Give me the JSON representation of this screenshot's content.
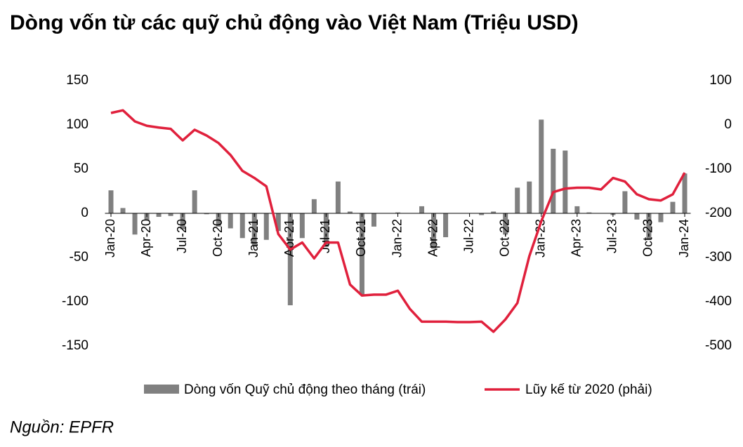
{
  "chart_data": {
    "type": "bar",
    "title": "Dòng vốn từ các quỹ chủ động vào Việt Nam (Triệu USD)",
    "source": "Nguồn: EPFR",
    "categories": [
      "Jan-20",
      null,
      null,
      "Apr-20",
      null,
      null,
      "Jul-20",
      null,
      null,
      "Oct-20",
      null,
      null,
      "Jan-21",
      null,
      null,
      "Apr-21",
      null,
      null,
      "Jul-21",
      null,
      null,
      "Oct-21",
      null,
      null,
      "Jan-22",
      null,
      null,
      "Apr-22",
      null,
      null,
      "Jul-22",
      null,
      null,
      "Oct-22",
      null,
      null,
      "Jan-23",
      null,
      null,
      "Apr-23",
      null,
      null,
      "Jul-23",
      null,
      null,
      "Oct-23",
      null,
      null,
      "Jan-24"
    ],
    "series": [
      {
        "name": "Dòng vốn Quỹ chủ động theo tháng (trái)",
        "type": "bar",
        "color": "#808080",
        "values": [
          26,
          6,
          -24,
          -8,
          -4,
          -3,
          -18,
          26,
          -1,
          -15,
          -17,
          -28,
          -36,
          -30,
          -20,
          -104,
          -28,
          16,
          -38,
          36,
          2,
          -92,
          -15,
          0,
          1,
          0,
          8,
          -40,
          -27,
          0,
          0,
          -2,
          2,
          -24,
          29,
          36,
          106,
          73,
          71,
          8,
          1,
          0,
          -2,
          25,
          -7,
          -30,
          -10,
          13,
          45
        ]
      },
      {
        "name": "Lũy kế từ 2020 (phải)",
        "type": "line",
        "axis": "y2",
        "color": "#e0203c",
        "values": [
          27,
          33,
          8,
          -2,
          -6,
          -9,
          -35,
          -11,
          -24,
          -41,
          -68,
          -104,
          -120,
          -139,
          -247,
          -282,
          -266,
          -302,
          -266,
          -266,
          -361,
          -386,
          -384,
          -384,
          -375,
          -416,
          -445,
          -445,
          -445,
          -446,
          -446,
          -445,
          -468,
          -440,
          -403,
          -297,
          -218,
          -152,
          -144,
          -142,
          -142,
          -146,
          -120,
          -128,
          -157,
          -168,
          -171,
          -157,
          -108
        ]
      }
    ],
    "ylim": [
      -150,
      150
    ],
    "yticks": [
      -150,
      -100,
      -50,
      0,
      50,
      100,
      150
    ],
    "y2lim": [
      -500,
      100
    ],
    "y2ticks": [
      -500,
      -400,
      -300,
      -200,
      -100,
      0,
      100
    ]
  }
}
